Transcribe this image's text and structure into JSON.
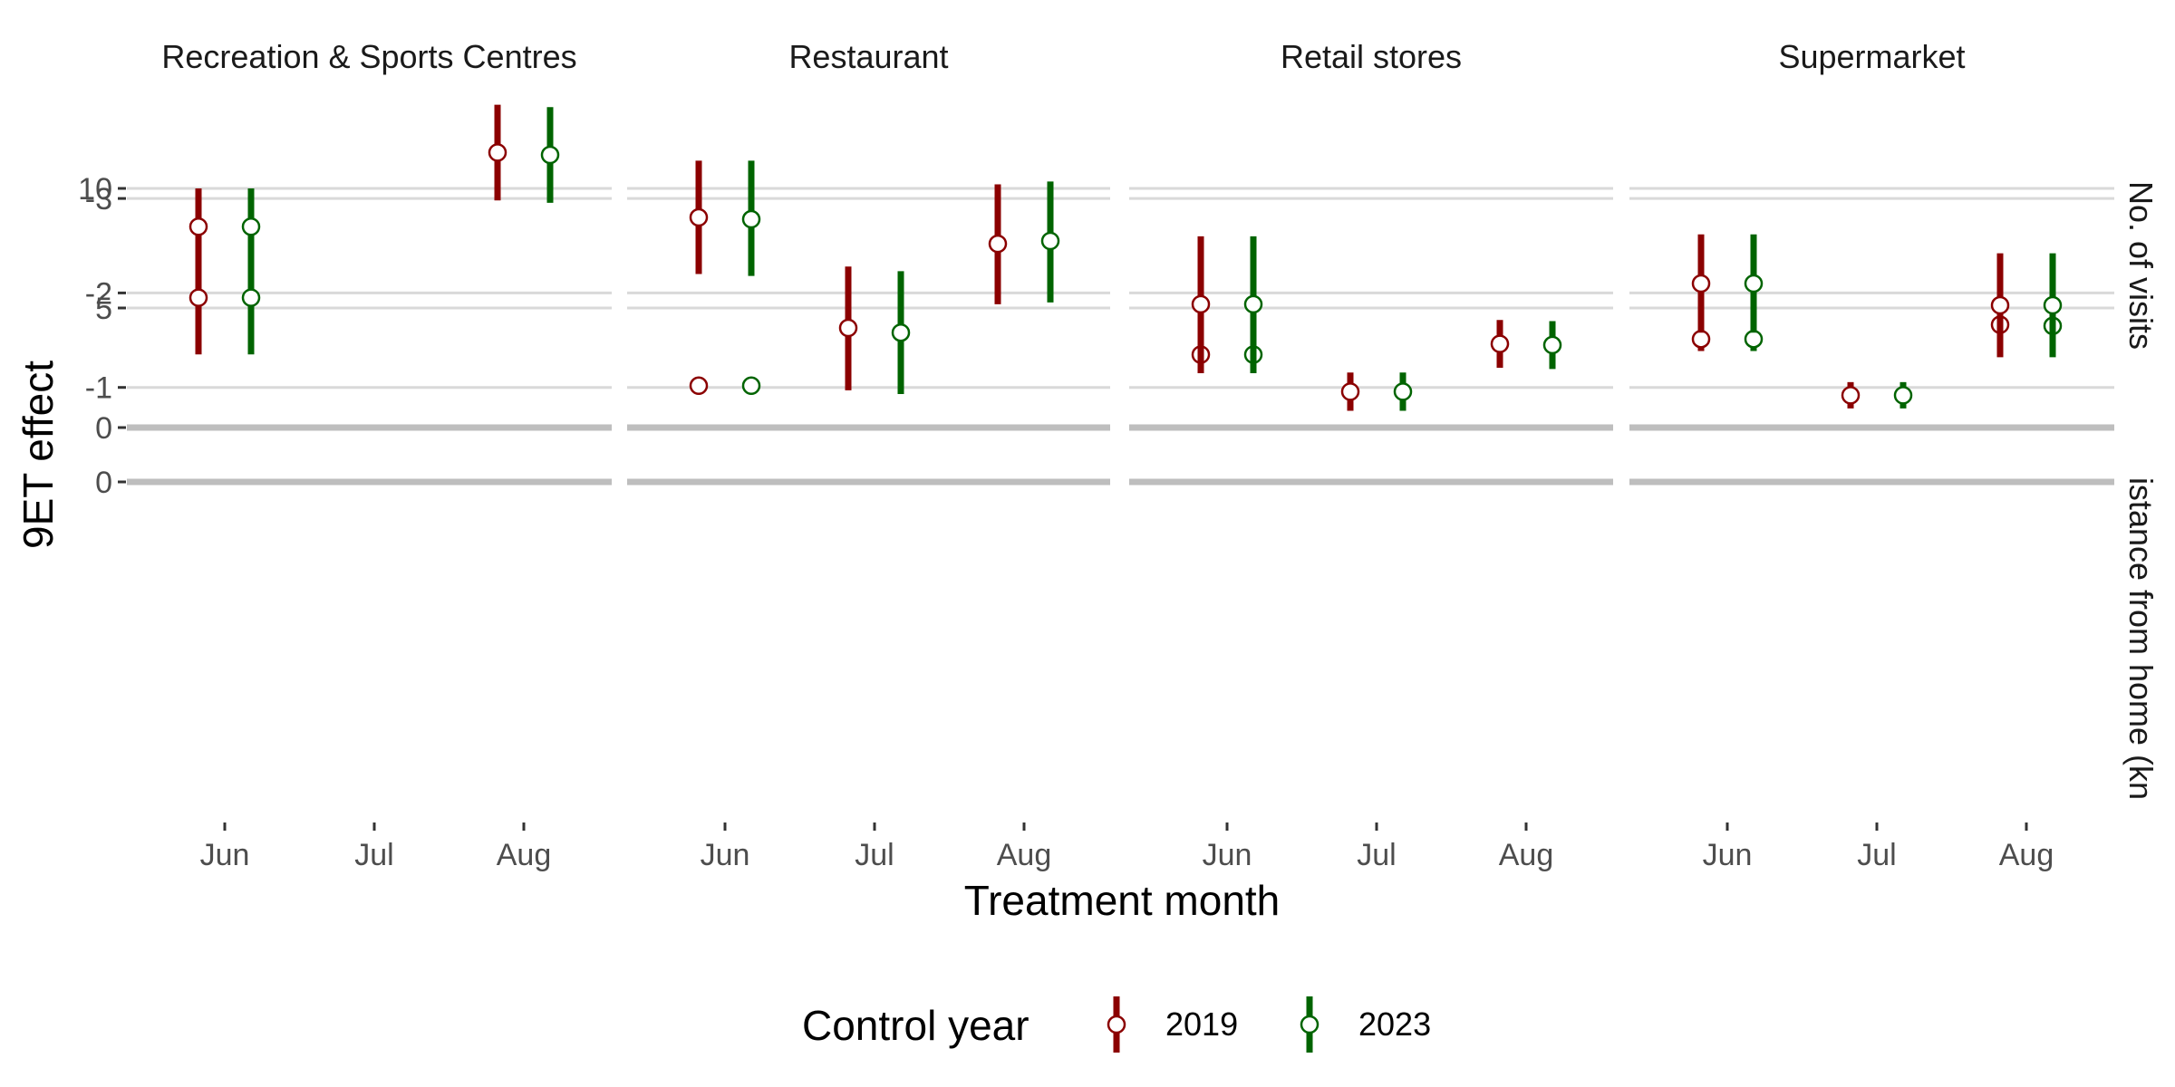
{
  "chart_data": {
    "type": "pointrange",
    "ylabel": "9ET effect",
    "xlabel": "Treatment month",
    "x_categories": [
      "Jun",
      "Jul",
      "Aug"
    ],
    "panels": [
      "Recreation & Sports Centres",
      "Restaurant",
      "Retail stores",
      "Supermarket"
    ],
    "rows": [
      {
        "key": "visits",
        "label": "No. of visits",
        "ylim": [
          0,
          10.2
        ],
        "ticks": [
          0,
          5,
          10
        ]
      },
      {
        "key": "distance",
        "label": "istance from home (kn",
        "ylim": [
          -3.45,
          0
        ],
        "ticks": [
          0,
          -1,
          -2,
          -3
        ]
      }
    ],
    "legend": {
      "title": "Control year",
      "position": "bottom",
      "items": [
        {
          "name": "2019",
          "color": "#8B0000"
        },
        {
          "name": "2023",
          "color": "#006400"
        }
      ]
    },
    "series": [
      {
        "name": "2019",
        "color": "#8B0000",
        "points": [
          {
            "panel": "Recreation & Sports Centres",
            "row": "visits",
            "x": "Jun",
            "y": 8.4,
            "lo": 6.8,
            "hi": 10.0
          },
          {
            "panel": "Recreation & Sports Centres",
            "row": "visits",
            "x": "Aug",
            "y": 11.5,
            "lo": 9.5,
            "hi": 13.5
          },
          {
            "panel": "Restaurant",
            "row": "visits",
            "x": "Jun",
            "y": 1.75,
            "lo": 1.45,
            "hi": 2.05
          },
          {
            "panel": "Retail stores",
            "row": "visits",
            "x": "Jun",
            "y": 3.05,
            "lo": 2.3,
            "hi": 3.8
          },
          {
            "panel": "Retail stores",
            "row": "visits",
            "x": "Jul",
            "y": 1.5,
            "lo": 0.7,
            "hi": 2.3
          },
          {
            "panel": "Retail stores",
            "row": "visits",
            "x": "Aug",
            "y": 3.5,
            "lo": 2.5,
            "hi": 4.5
          },
          {
            "panel": "Supermarket",
            "row": "visits",
            "x": "Jun",
            "y": 3.7,
            "lo": 3.2,
            "hi": 4.2
          },
          {
            "panel": "Supermarket",
            "row": "visits",
            "x": "Jul",
            "y": 1.35,
            "lo": 0.8,
            "hi": 1.9
          },
          {
            "panel": "Supermarket",
            "row": "visits",
            "x": "Aug",
            "y": 4.3,
            "lo": 3.7,
            "hi": 4.95
          },
          {
            "panel": "Recreation & Sports Centres",
            "row": "distance",
            "x": "Jun",
            "y": -1.95,
            "lo": -2.55,
            "hi": -1.35
          },
          {
            "panel": "Restaurant",
            "row": "distance",
            "x": "Jun",
            "y": -2.8,
            "lo": -3.4,
            "hi": -2.2
          },
          {
            "panel": "Restaurant",
            "row": "distance",
            "x": "Jul",
            "y": -1.63,
            "lo": -2.28,
            "hi": -0.97
          },
          {
            "panel": "Restaurant",
            "row": "distance",
            "x": "Aug",
            "y": -2.52,
            "lo": -3.15,
            "hi": -1.88
          },
          {
            "panel": "Retail stores",
            "row": "distance",
            "x": "Jun",
            "y": -1.88,
            "lo": -2.6,
            "hi": -1.15
          },
          {
            "panel": "Supermarket",
            "row": "distance",
            "x": "Jun",
            "y": -2.1,
            "lo": -2.62,
            "hi": -1.58
          },
          {
            "panel": "Supermarket",
            "row": "distance",
            "x": "Aug",
            "y": -1.87,
            "lo": -2.42,
            "hi": -1.32
          }
        ]
      },
      {
        "name": "2023",
        "color": "#006400",
        "points": [
          {
            "panel": "Recreation & Sports Centres",
            "row": "visits",
            "x": "Jun",
            "y": 8.4,
            "lo": 6.8,
            "hi": 10.0
          },
          {
            "panel": "Recreation & Sports Centres",
            "row": "visits",
            "x": "Aug",
            "y": 11.4,
            "lo": 9.4,
            "hi": 13.4
          },
          {
            "panel": "Restaurant",
            "row": "visits",
            "x": "Jun",
            "y": 1.75,
            "lo": 1.45,
            "hi": 2.05
          },
          {
            "panel": "Retail stores",
            "row": "visits",
            "x": "Jun",
            "y": 3.05,
            "lo": 2.3,
            "hi": 3.8
          },
          {
            "panel": "Retail stores",
            "row": "visits",
            "x": "Jul",
            "y": 1.5,
            "lo": 0.7,
            "hi": 2.3
          },
          {
            "panel": "Retail stores",
            "row": "visits",
            "x": "Aug",
            "y": 3.45,
            "lo": 2.45,
            "hi": 4.45
          },
          {
            "panel": "Supermarket",
            "row": "visits",
            "x": "Jun",
            "y": 3.7,
            "lo": 3.2,
            "hi": 4.2
          },
          {
            "panel": "Supermarket",
            "row": "visits",
            "x": "Jul",
            "y": 1.35,
            "lo": 0.8,
            "hi": 1.9
          },
          {
            "panel": "Supermarket",
            "row": "visits",
            "x": "Aug",
            "y": 4.25,
            "lo": 3.65,
            "hi": 4.85
          },
          {
            "panel": "Recreation & Sports Centres",
            "row": "distance",
            "x": "Jun",
            "y": -1.95,
            "lo": -2.55,
            "hi": -1.35
          },
          {
            "panel": "Restaurant",
            "row": "distance",
            "x": "Jun",
            "y": -2.78,
            "lo": -3.4,
            "hi": -2.18
          },
          {
            "panel": "Restaurant",
            "row": "distance",
            "x": "Jul",
            "y": -1.58,
            "lo": -2.23,
            "hi": -0.93
          },
          {
            "panel": "Restaurant",
            "row": "distance",
            "x": "Aug",
            "y": -2.55,
            "lo": -3.18,
            "hi": -1.9
          },
          {
            "panel": "Retail stores",
            "row": "distance",
            "x": "Jun",
            "y": -1.88,
            "lo": -2.6,
            "hi": -1.15
          },
          {
            "panel": "Supermarket",
            "row": "distance",
            "x": "Jun",
            "y": -2.1,
            "lo": -2.62,
            "hi": -1.58
          },
          {
            "panel": "Supermarket",
            "row": "distance",
            "x": "Aug",
            "y": -1.87,
            "lo": -2.42,
            "hi": -1.32
          }
        ]
      }
    ]
  }
}
